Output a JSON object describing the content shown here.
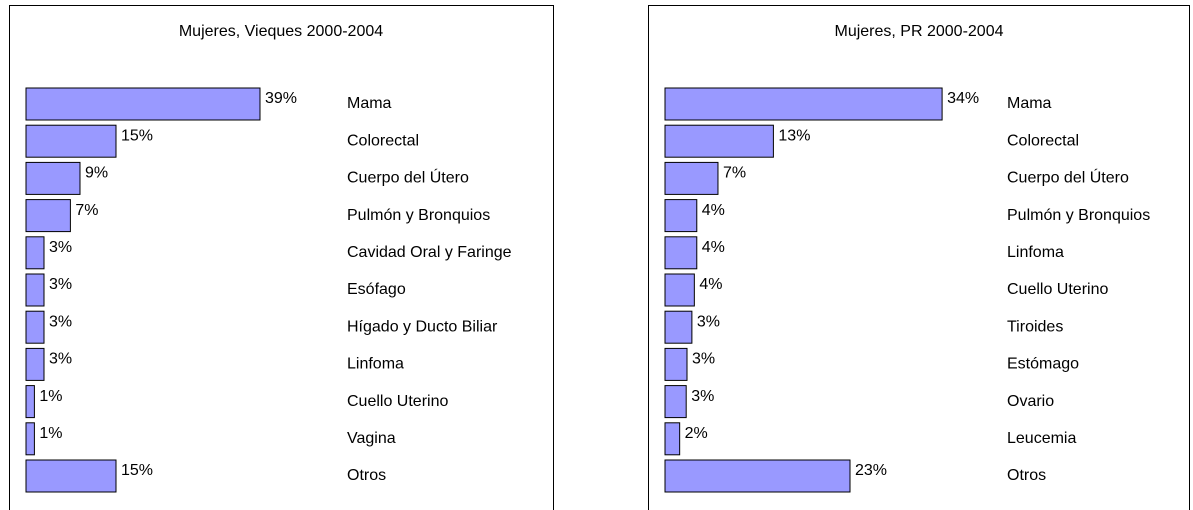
{
  "chart_data": [
    {
      "type": "bar",
      "orientation": "horizontal",
      "title": "Mujeres, Vieques  2000-2004",
      "categories": [
        "Mama",
        "Colorectal",
        "Cuerpo del Útero",
        "Pulmón y Bronquios",
        "Cavidad Oral y Faringe",
        "Esófago",
        "Hígado y Ducto Biliar",
        "Linfoma",
        "Cuello Uterino",
        "Vagina",
        "Otros"
      ],
      "values": [
        39,
        15,
        9,
        7.4,
        3,
        3,
        3,
        3,
        1.4,
        1.4,
        15
      ],
      "value_labels": [
        "39%",
        "15%",
        "9%",
        "7%",
        "3%",
        "3%",
        "3%",
        "3%",
        "1%",
        "1%",
        "15%"
      ],
      "color": "#9999ff",
      "xlim": [
        0,
        50
      ]
    },
    {
      "type": "bar",
      "orientation": "horizontal",
      "title": "Mujeres, PR  2000-2004",
      "categories": [
        "Mama",
        "Colorectal",
        "Cuerpo del Útero",
        "Pulmón y Bronquios",
        "Linfoma",
        "Cuello Uterino",
        "Tiroides",
        "Estómago",
        "Ovario",
        "Leucemia",
        "Otros"
      ],
      "values": [
        34,
        13.3,
        6.5,
        3.9,
        3.9,
        3.6,
        3.3,
        2.7,
        2.6,
        1.8,
        22.7
      ],
      "value_labels": [
        "34%",
        "13%",
        "7%",
        "4%",
        "4%",
        "4%",
        "3%",
        "3%",
        "3%",
        "2%",
        "23%"
      ],
      "color": "#9999ff",
      "xlim": [
        0,
        40
      ]
    }
  ]
}
